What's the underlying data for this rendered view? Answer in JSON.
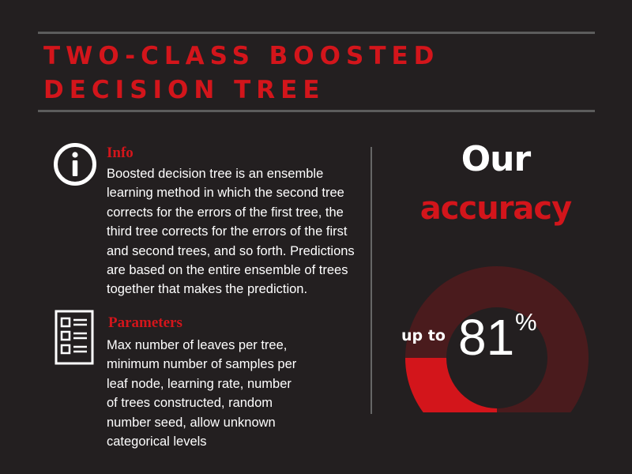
{
  "title": {
    "line1": "TWO-CLASS BOOSTED",
    "line2": "DECISION TREE"
  },
  "info": {
    "heading": "Info",
    "text": "Boosted decision tree is an ensemble learning method in which the second tree corrects for the errors of the first tree, the third tree corrects for the errors of the first and second trees, and so forth. Predictions are based on the entire ensemble of trees together that makes the prediction.",
    "icon": "info-icon"
  },
  "parameters": {
    "heading": "Parameters",
    "text": "Max number of leaves per tree, minimum number of samples per leaf node, learning rate, number of trees constructed, random number seed, allow unknown categorical levels",
    "icon": "document-list-icon"
  },
  "accuracy": {
    "line1": "Our",
    "line2": "accuracy",
    "prefix": "up to",
    "value": "81",
    "unit": "%",
    "fraction": 0.81
  },
  "colors": {
    "background": "#231f20",
    "accent": "#d3151b",
    "ring_track": "#4a1b1d",
    "text": "#ffffff"
  }
}
